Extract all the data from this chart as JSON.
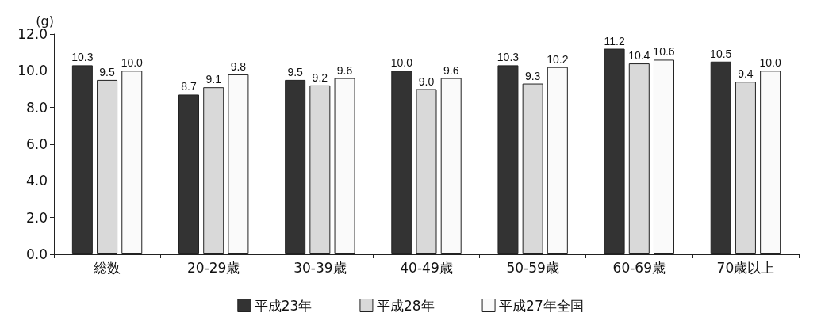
{
  "chart_data": {
    "type": "bar",
    "ylabel": "(g)",
    "categories": [
      "総数",
      "20-29歳",
      "30-39歳",
      "40-49歳",
      "50-59歳",
      "60-69歳",
      "70歳以上"
    ],
    "series": [
      {
        "name": "平成23年",
        "color": "#333333",
        "values": [
          10.3,
          8.7,
          9.5,
          10.0,
          10.3,
          11.2,
          10.5
        ],
        "value_labels": [
          "10.3",
          "8.7",
          "9.5",
          "10.0",
          "10.3",
          "11.2",
          "10.5"
        ]
      },
      {
        "name": "平成28年",
        "color": "#d9d9d9",
        "values": [
          9.5,
          9.1,
          9.2,
          9.0,
          9.3,
          10.4,
          9.4
        ],
        "value_labels": [
          "9.5",
          "9.1",
          "9.2",
          "9.0",
          "9.3",
          "10.4",
          "9.4"
        ]
      },
      {
        "name": "平成27年全国",
        "color": "#fafafa",
        "values": [
          10.0,
          9.8,
          9.6,
          9.6,
          10.2,
          10.6,
          10.0
        ],
        "value_labels": [
          "10.0",
          "9.8",
          "9.6",
          "9.6",
          "10.2",
          "10.6",
          "10.0"
        ]
      }
    ],
    "ylim": [
      0,
      12
    ],
    "yticks": [
      {
        "value": 0,
        "label": "0.0"
      },
      {
        "value": 2,
        "label": "2.0"
      },
      {
        "value": 4,
        "label": "4.0"
      },
      {
        "value": 6,
        "label": "6.0"
      },
      {
        "value": 8,
        "label": "8.0"
      },
      {
        "value": 10,
        "label": "10.0"
      },
      {
        "value": 12,
        "label": "12.0"
      }
    ],
    "grid": false,
    "legend": "bottom"
  }
}
